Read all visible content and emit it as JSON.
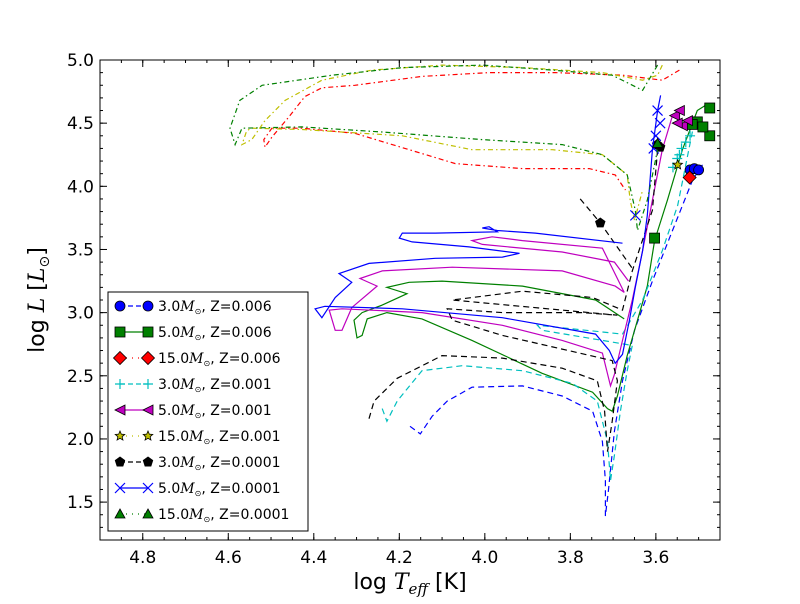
{
  "chart_data": {
    "type": "line",
    "title": "",
    "xlabel": {
      "prefix": "log ",
      "var": "T",
      "sub": "eff",
      "suffix": " [K]"
    },
    "ylabel": {
      "prefix": "log ",
      "var": "L",
      "bracket_open": " [",
      "var2": "L",
      "sub2": "⊙",
      "bracket_close": "]"
    },
    "xlim": [
      4.9,
      3.45
    ],
    "ylim": [
      1.2,
      5.0
    ],
    "x_inverted": true,
    "xticks": [
      4.8,
      4.6,
      4.4,
      4.2,
      4.0,
      3.8,
      3.6
    ],
    "xtick_labels": [
      "4.8",
      "4.6",
      "4.4",
      "4.2",
      "4.0",
      "3.8",
      "3.6"
    ],
    "yticks": [
      1.5,
      2.0,
      2.5,
      3.0,
      3.5,
      4.0,
      4.5,
      5.0
    ],
    "ytick_labels": [
      "1.5",
      "2.0",
      "2.5",
      "3.0",
      "3.5",
      "4.0",
      "4.5",
      "5.0"
    ],
    "grid": false,
    "legend_position": "lower-left",
    "series": [
      {
        "name": "3.0 Msun Z=0.006",
        "mass": "3.0",
        "unit": "M",
        "unit_sub": "⊙",
        "z": ", Z=0.006",
        "color": "#0000ff",
        "linestyle": "dashed",
        "marker": "circle",
        "points": [
          [
            4.175,
            2.1
          ],
          [
            4.151,
            2.04
          ],
          [
            4.123,
            2.18
          ],
          [
            4.088,
            2.3
          ],
          [
            4.03,
            2.41
          ],
          [
            3.912,
            2.42
          ],
          [
            3.819,
            2.34
          ],
          [
            3.748,
            2.22
          ],
          [
            3.725,
            1.98
          ],
          [
            3.718,
            1.67
          ],
          [
            3.718,
            1.39
          ],
          [
            3.711,
            1.59
          ],
          [
            3.697,
            2.06
          ],
          [
            3.678,
            2.46
          ],
          [
            3.65,
            2.86
          ],
          [
            3.608,
            3.25
          ],
          [
            3.561,
            3.65
          ],
          [
            3.514,
            4.05
          ],
          [
            3.491,
            4.17
          ]
        ],
        "marker_points": [
          [
            3.52,
            4.13
          ],
          [
            3.51,
            4.14
          ],
          [
            3.5,
            4.13
          ]
        ]
      },
      {
        "name": "5.0 Msun Z=0.006",
        "mass": "5.0",
        "unit": "M",
        "unit_sub": "⊙",
        "z": ", Z=0.006",
        "color": "#008000",
        "linestyle": "solid",
        "marker": "square",
        "points": [
          [
            3.674,
            2.95
          ],
          [
            3.741,
            3.1
          ],
          [
            3.912,
            3.21
          ],
          [
            4.1,
            3.25
          ],
          [
            4.177,
            3.24
          ],
          [
            4.229,
            3.2
          ],
          [
            4.182,
            3.15
          ],
          [
            4.24,
            3.06
          ],
          [
            4.287,
            3.0
          ],
          [
            4.306,
            2.94
          ],
          [
            4.299,
            2.8
          ],
          [
            4.287,
            2.82
          ],
          [
            4.275,
            2.95
          ],
          [
            4.229,
            3.0
          ],
          [
            4.147,
            2.95
          ],
          [
            4.03,
            2.78
          ],
          [
            3.866,
            2.52
          ],
          [
            3.748,
            2.37
          ],
          [
            3.713,
            2.24
          ],
          [
            3.702,
            2.22
          ],
          [
            3.69,
            2.34
          ],
          [
            3.667,
            2.66
          ],
          [
            3.643,
            2.94
          ],
          [
            3.62,
            3.21
          ],
          [
            3.603,
            3.57
          ],
          [
            3.573,
            3.89
          ],
          [
            3.538,
            4.29
          ],
          [
            3.503,
            4.6
          ],
          [
            3.48,
            4.65
          ]
        ],
        "marker_points": [
          [
            3.603,
            3.59
          ],
          [
            3.474,
            4.62
          ],
          [
            3.474,
            4.4
          ],
          [
            3.503,
            4.51
          ],
          [
            3.49,
            4.47
          ],
          [
            3.515,
            4.49
          ]
        ]
      },
      {
        "name": "15.0 Msun Z=0.006",
        "mass": "15.0",
        "unit": "M",
        "unit_sub": "⊙",
        "z": ", Z=0.006",
        "color": "#ff0000",
        "linestyle": "dashdot",
        "marker": "diamond",
        "points": [
          [
            3.545,
            4.92
          ],
          [
            3.585,
            4.84
          ],
          [
            3.678,
            4.88
          ],
          [
            3.835,
            4.9
          ],
          [
            3.99,
            4.9
          ],
          [
            4.147,
            4.87
          ],
          [
            4.304,
            4.8
          ],
          [
            4.381,
            4.78
          ],
          [
            4.421,
            4.71
          ],
          [
            4.458,
            4.55
          ],
          [
            4.498,
            4.39
          ],
          [
            4.514,
            4.31
          ],
          [
            4.517,
            4.37
          ],
          [
            4.498,
            4.46
          ],
          [
            4.428,
            4.46
          ],
          [
            4.304,
            4.42
          ],
          [
            4.069,
            4.18
          ],
          [
            3.912,
            4.14
          ],
          [
            3.756,
            4.14
          ],
          [
            3.695,
            4.09
          ],
          [
            3.671,
            3.97
          ]
        ],
        "marker_points": [
          [
            3.521,
            4.07
          ]
        ]
      },
      {
        "name": "3.0 Msun Z=0.001",
        "mass": "3.0",
        "unit": "M",
        "unit_sub": "⊙",
        "z": ", Z=0.001",
        "color": "#00bfbf",
        "linestyle": "dashed",
        "marker": "plus",
        "points": [
          [
            4.24,
            2.24
          ],
          [
            4.229,
            2.14
          ],
          [
            4.205,
            2.3
          ],
          [
            4.147,
            2.54
          ],
          [
            4.053,
            2.58
          ],
          [
            3.912,
            2.54
          ],
          [
            3.795,
            2.44
          ],
          [
            3.737,
            2.3
          ],
          [
            3.713,
            1.98
          ],
          [
            3.706,
            1.67
          ],
          [
            3.697,
            1.87
          ],
          [
            3.683,
            2.22
          ],
          [
            3.667,
            2.54
          ],
          [
            3.655,
            2.74
          ],
          [
            3.725,
            2.78
          ],
          [
            3.866,
            2.86
          ],
          [
            3.877,
            2.9
          ],
          [
            3.819,
            2.88
          ],
          [
            3.678,
            2.83
          ],
          [
            3.631,
            3.1
          ],
          [
            3.585,
            3.49
          ],
          [
            3.549,
            3.85
          ],
          [
            3.514,
            4.44
          ]
        ],
        "marker_points": [
          [
            3.56,
            4.15
          ],
          [
            3.55,
            4.22
          ],
          [
            3.54,
            4.3
          ],
          [
            3.53,
            4.35
          ],
          [
            3.52,
            4.4
          ],
          [
            3.545,
            4.25
          ]
        ]
      },
      {
        "name": "5.0 Msun Z=0.001",
        "mass": "5.0",
        "unit": "M",
        "unit_sub": "⊙",
        "z": ", Z=0.001",
        "color": "#bf00bf",
        "linestyle": "solid",
        "marker": "triangle-left",
        "points": [
          [
            3.664,
            3.25
          ],
          [
            3.697,
            3.4
          ],
          [
            3.819,
            3.48
          ],
          [
            4.006,
            3.54
          ],
          [
            4.03,
            3.57
          ],
          [
            3.983,
            3.6
          ],
          [
            3.912,
            3.57
          ],
          [
            3.725,
            3.51
          ],
          [
            3.674,
            3.16
          ],
          [
            3.695,
            3.21
          ],
          [
            3.819,
            3.33
          ],
          [
            4.076,
            3.36
          ],
          [
            4.24,
            3.33
          ],
          [
            4.292,
            3.27
          ],
          [
            4.252,
            3.21
          ],
          [
            4.311,
            3.04
          ],
          [
            4.334,
            2.86
          ],
          [
            4.35,
            2.86
          ],
          [
            4.364,
            3.02
          ],
          [
            4.334,
            3.03
          ],
          [
            4.147,
            3.0
          ],
          [
            3.959,
            2.9
          ],
          [
            3.819,
            2.78
          ],
          [
            3.725,
            2.68
          ],
          [
            3.706,
            2.42
          ],
          [
            3.697,
            2.51
          ],
          [
            3.678,
            2.78
          ],
          [
            3.655,
            3.1
          ],
          [
            3.631,
            3.49
          ],
          [
            3.608,
            3.89
          ],
          [
            3.585,
            4.29
          ],
          [
            3.561,
            4.56
          ]
        ],
        "marker_points": [
          [
            3.556,
            4.56
          ],
          [
            3.538,
            4.48
          ],
          [
            3.545,
            4.6
          ],
          [
            3.526,
            4.52
          ],
          [
            3.55,
            4.5
          ]
        ]
      },
      {
        "name": "15.0 Msun Z=0.001",
        "mass": "15.0",
        "unit": "M",
        "unit_sub": "⊙",
        "z": ", Z=0.001",
        "color": "#bfbf00",
        "linestyle": "dashdot",
        "marker": "star",
        "points": [
          [
            3.585,
            4.96
          ],
          [
            3.596,
            4.88
          ],
          [
            3.631,
            4.84
          ],
          [
            3.725,
            4.9
          ],
          [
            3.912,
            4.94
          ],
          [
            4.1,
            4.96
          ],
          [
            4.264,
            4.92
          ],
          [
            4.381,
            4.84
          ],
          [
            4.467,
            4.68
          ],
          [
            4.514,
            4.52
          ],
          [
            4.545,
            4.37
          ],
          [
            4.568,
            4.33
          ],
          [
            4.557,
            4.44
          ],
          [
            4.545,
            4.46
          ],
          [
            4.428,
            4.45
          ],
          [
            4.193,
            4.4
          ],
          [
            4.03,
            4.29
          ],
          [
            3.842,
            4.29
          ],
          [
            3.725,
            4.25
          ],
          [
            3.667,
            4.09
          ],
          [
            3.66,
            3.89
          ],
          [
            3.65,
            3.73
          ],
          [
            3.631,
            3.97
          ]
        ],
        "marker_points": [
          [
            3.549,
            4.17
          ]
        ]
      },
      {
        "name": "3.0 Msun Z=0.0001",
        "mass": "3.0",
        "unit": "M",
        "unit_sub": "⊙",
        "z": ", Z=0.0001",
        "color": "#000000",
        "linestyle": "dashed",
        "marker": "pentagon",
        "points": [
          [
            4.271,
            2.16
          ],
          [
            4.259,
            2.3
          ],
          [
            4.205,
            2.48
          ],
          [
            4.1,
            2.66
          ],
          [
            3.959,
            2.64
          ],
          [
            3.819,
            2.56
          ],
          [
            3.737,
            2.46
          ],
          [
            3.72,
            2.22
          ],
          [
            3.713,
            1.9
          ],
          [
            3.702,
            2.14
          ],
          [
            3.69,
            2.46
          ],
          [
            3.702,
            2.62
          ],
          [
            3.959,
            2.82
          ],
          [
            4.076,
            2.94
          ],
          [
            4.088,
            3.03
          ],
          [
            3.959,
            3.0
          ],
          [
            3.772,
            3.0
          ],
          [
            3.69,
            2.98
          ],
          [
            4.076,
            3.1
          ],
          [
            3.912,
            3.17
          ],
          [
            3.748,
            3.12
          ],
          [
            3.678,
            3.02
          ],
          [
            3.655,
            3.33
          ],
          [
            3.608,
            3.81
          ],
          [
            3.596,
            4.29
          ]
        ],
        "extra_points": [
          [
            3.777,
            3.9
          ],
          [
            3.73,
            3.71
          ],
          [
            3.655,
            3.35
          ]
        ],
        "marker_points": [
          [
            3.597,
            4.33
          ],
          [
            3.73,
            3.71
          ],
          [
            3.59,
            4.31
          ]
        ]
      },
      {
        "name": "5.0 Msun Z=0.0001",
        "mass": "5.0",
        "unit": "M",
        "unit_sub": "⊙",
        "z": ", Z=0.0001",
        "color": "#0000ff",
        "linestyle": "solid",
        "marker": "x",
        "points": [
          [
            3.678,
            3.55
          ],
          [
            3.882,
            3.63
          ],
          [
            3.971,
            3.65
          ],
          [
            4.006,
            3.67
          ],
          [
            3.99,
            3.68
          ],
          [
            3.971,
            3.64
          ],
          [
            4.116,
            3.63
          ],
          [
            4.193,
            3.63
          ],
          [
            4.2,
            3.59
          ],
          [
            4.17,
            3.56
          ],
          [
            4.037,
            3.52
          ],
          [
            3.919,
            3.47
          ],
          [
            3.959,
            3.44
          ],
          [
            4.116,
            3.43
          ],
          [
            4.271,
            3.39
          ],
          [
            4.341,
            3.31
          ],
          [
            4.311,
            3.24
          ],
          [
            4.35,
            3.12
          ],
          [
            4.381,
            2.96
          ],
          [
            4.397,
            3.03
          ],
          [
            4.374,
            3.05
          ],
          [
            4.193,
            3.03
          ],
          [
            3.959,
            2.96
          ],
          [
            3.741,
            2.83
          ],
          [
            3.709,
            2.7
          ],
          [
            3.695,
            2.6
          ],
          [
            3.678,
            2.67
          ],
          [
            3.662,
            2.94
          ],
          [
            3.648,
            3.2
          ],
          [
            3.631,
            3.49
          ],
          [
            3.62,
            3.77
          ],
          [
            3.608,
            4.29
          ],
          [
            3.596,
            4.6
          ],
          [
            3.589,
            4.72
          ]
        ],
        "marker_points": [
          [
            3.648,
            3.77
          ],
          [
            3.596,
            4.6
          ],
          [
            3.59,
            4.5
          ],
          [
            3.6,
            4.4
          ],
          [
            3.605,
            4.3
          ]
        ]
      },
      {
        "name": "15.0 Msun Z=0.0001",
        "mass": "15.0",
        "unit": "M",
        "unit_sub": "⊙",
        "z": ", Z=0.0001",
        "color": "#008000",
        "linestyle": "dashdot",
        "marker": "triangle-up",
        "points": [
          [
            3.596,
            4.96
          ],
          [
            3.631,
            4.76
          ],
          [
            3.702,
            4.88
          ],
          [
            3.842,
            4.92
          ],
          [
            4.006,
            4.96
          ],
          [
            4.193,
            4.94
          ],
          [
            4.357,
            4.88
          ],
          [
            4.521,
            4.8
          ],
          [
            4.573,
            4.68
          ],
          [
            4.596,
            4.46
          ],
          [
            4.584,
            4.33
          ],
          [
            4.568,
            4.46
          ],
          [
            4.428,
            4.47
          ],
          [
            4.24,
            4.43
          ],
          [
            4.006,
            4.37
          ],
          [
            3.819,
            4.33
          ],
          [
            3.725,
            4.25
          ],
          [
            3.667,
            4.09
          ],
          [
            3.648,
            3.81
          ],
          [
            3.643,
            3.65
          ],
          [
            3.62,
            3.89
          ],
          [
            3.596,
            4.29
          ]
        ],
        "marker_points": [
          [
            3.596,
            4.34
          ]
        ]
      }
    ]
  }
}
